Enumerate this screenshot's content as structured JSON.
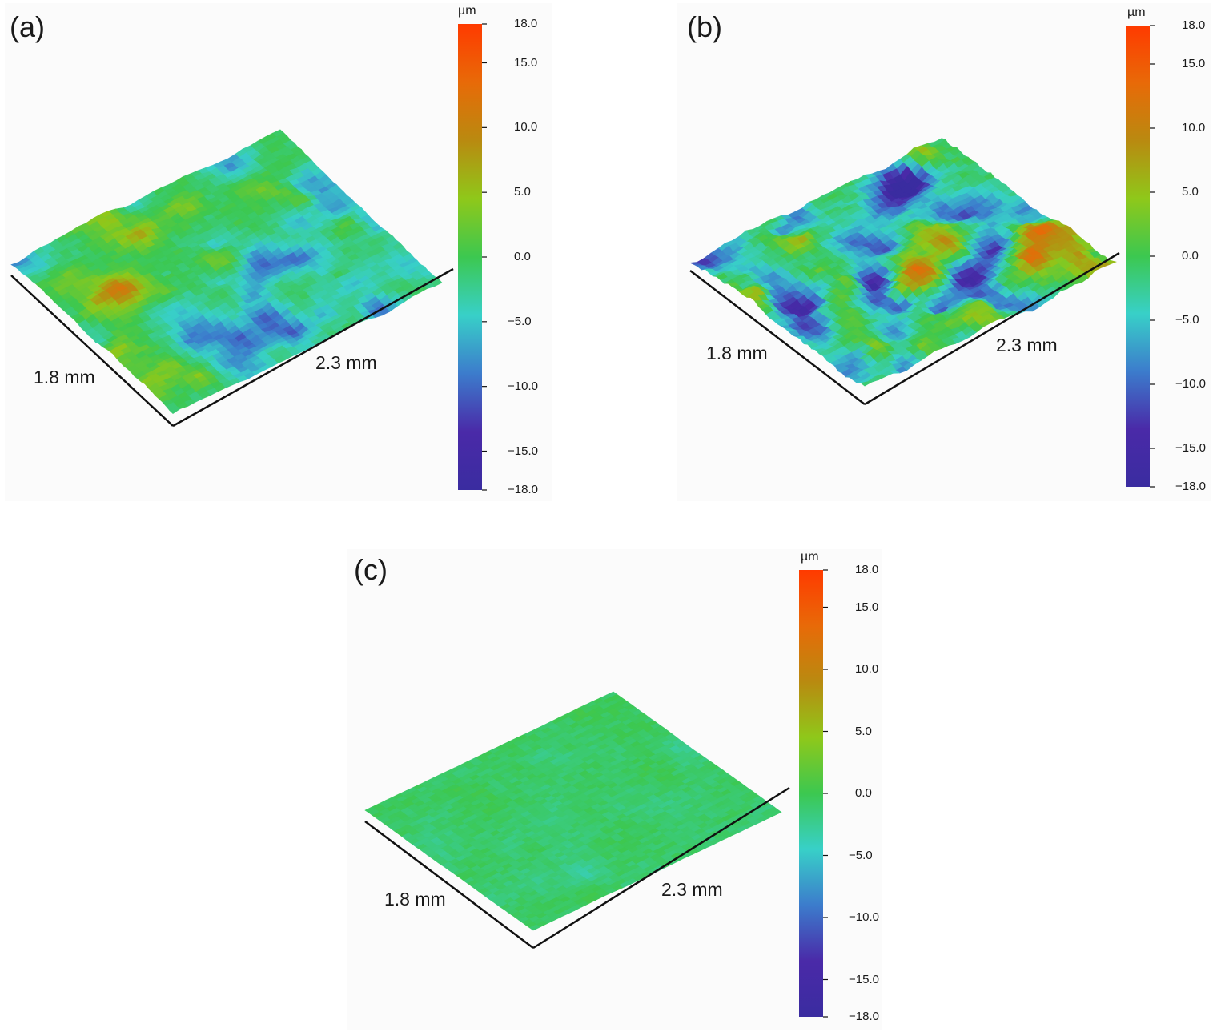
{
  "figure": {
    "colorbar": {
      "unit": "µm",
      "range": [
        -18.0,
        18.0
      ],
      "ticks": [
        "18.0",
        "15.0",
        "10.0",
        "5.0",
        "0.0",
        "−5.0",
        "−10.0",
        "−15.0",
        "−18.0"
      ],
      "tick_values": [
        18,
        15,
        10,
        5,
        0,
        -5,
        -10,
        -15,
        -18
      ],
      "colors": [
        "#ff3a00",
        "#e86a08",
        "#b98a10",
        "#8fc81a",
        "#3cc850",
        "#38d0c8",
        "#3c7ccc",
        "#4a2aa8",
        "#3a2ca0"
      ]
    },
    "panels": [
      {
        "id": "a",
        "label": "(a)",
        "width_label": "1.8 mm",
        "length_label": "2.3 mm",
        "surface": "moderate roughness with blue-green valleys and orange ridges",
        "amplitude": 0.55
      },
      {
        "id": "b",
        "label": "(b)",
        "width_label": "1.8 mm",
        "length_label": "2.3 mm",
        "surface": "high roughness with deep blue valleys and red peaks",
        "amplitude": 1.0
      },
      {
        "id": "c",
        "label": "(c)",
        "width_label": "1.8 mm",
        "length_label": "2.3 mm",
        "surface": "smooth, nearly uniform green",
        "amplitude": 0.08
      }
    ]
  }
}
